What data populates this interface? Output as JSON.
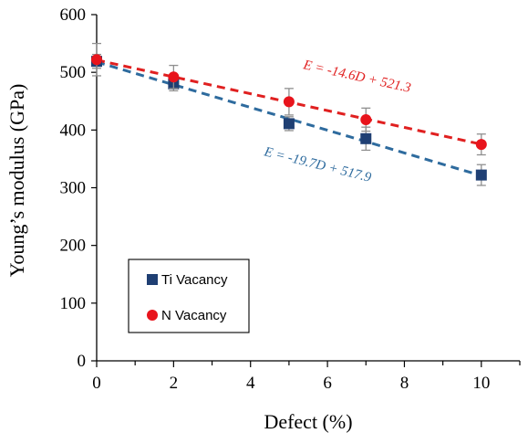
{
  "chart_data": {
    "type": "scatter",
    "xlabel": "Defect (%)",
    "ylabel": "Young’s modulus (GPa)",
    "xlim": [
      0,
      11
    ],
    "ylim": [
      0,
      600
    ],
    "xticks": [
      0,
      2,
      4,
      6,
      8,
      10
    ],
    "xticks_minor": [
      1,
      3,
      5,
      7,
      9,
      11
    ],
    "yticks": [
      0,
      100,
      200,
      300,
      400,
      500,
      600
    ],
    "grid": false,
    "legend": {
      "placement": "bottom-left",
      "framed": true
    },
    "series": [
      {
        "name": "Ti Vacancy",
        "marker": "square",
        "color": "#1f3f73",
        "x": [
          0,
          2,
          5,
          7,
          10
        ],
        "y": [
          519,
          480,
          411,
          385,
          322
        ],
        "err": [
          12,
          12,
          12,
          20,
          18
        ],
        "fit": {
          "equation": "E = -19.7D + 517.9",
          "slope": -19.7,
          "intercept": 517.9,
          "color": "#2e6b9e"
        }
      },
      {
        "name": "N Vacancy",
        "marker": "circle",
        "color": "#e8141c",
        "x": [
          0,
          2,
          5,
          7,
          10
        ],
        "y": [
          522,
          492,
          449,
          418,
          375
        ],
        "err": [
          28,
          20,
          23,
          20,
          18
        ],
        "fit": {
          "equation": "E = -14.6D + 521.3",
          "slope": -14.6,
          "intercept": 521.3,
          "color": "#e02020"
        }
      }
    ]
  }
}
